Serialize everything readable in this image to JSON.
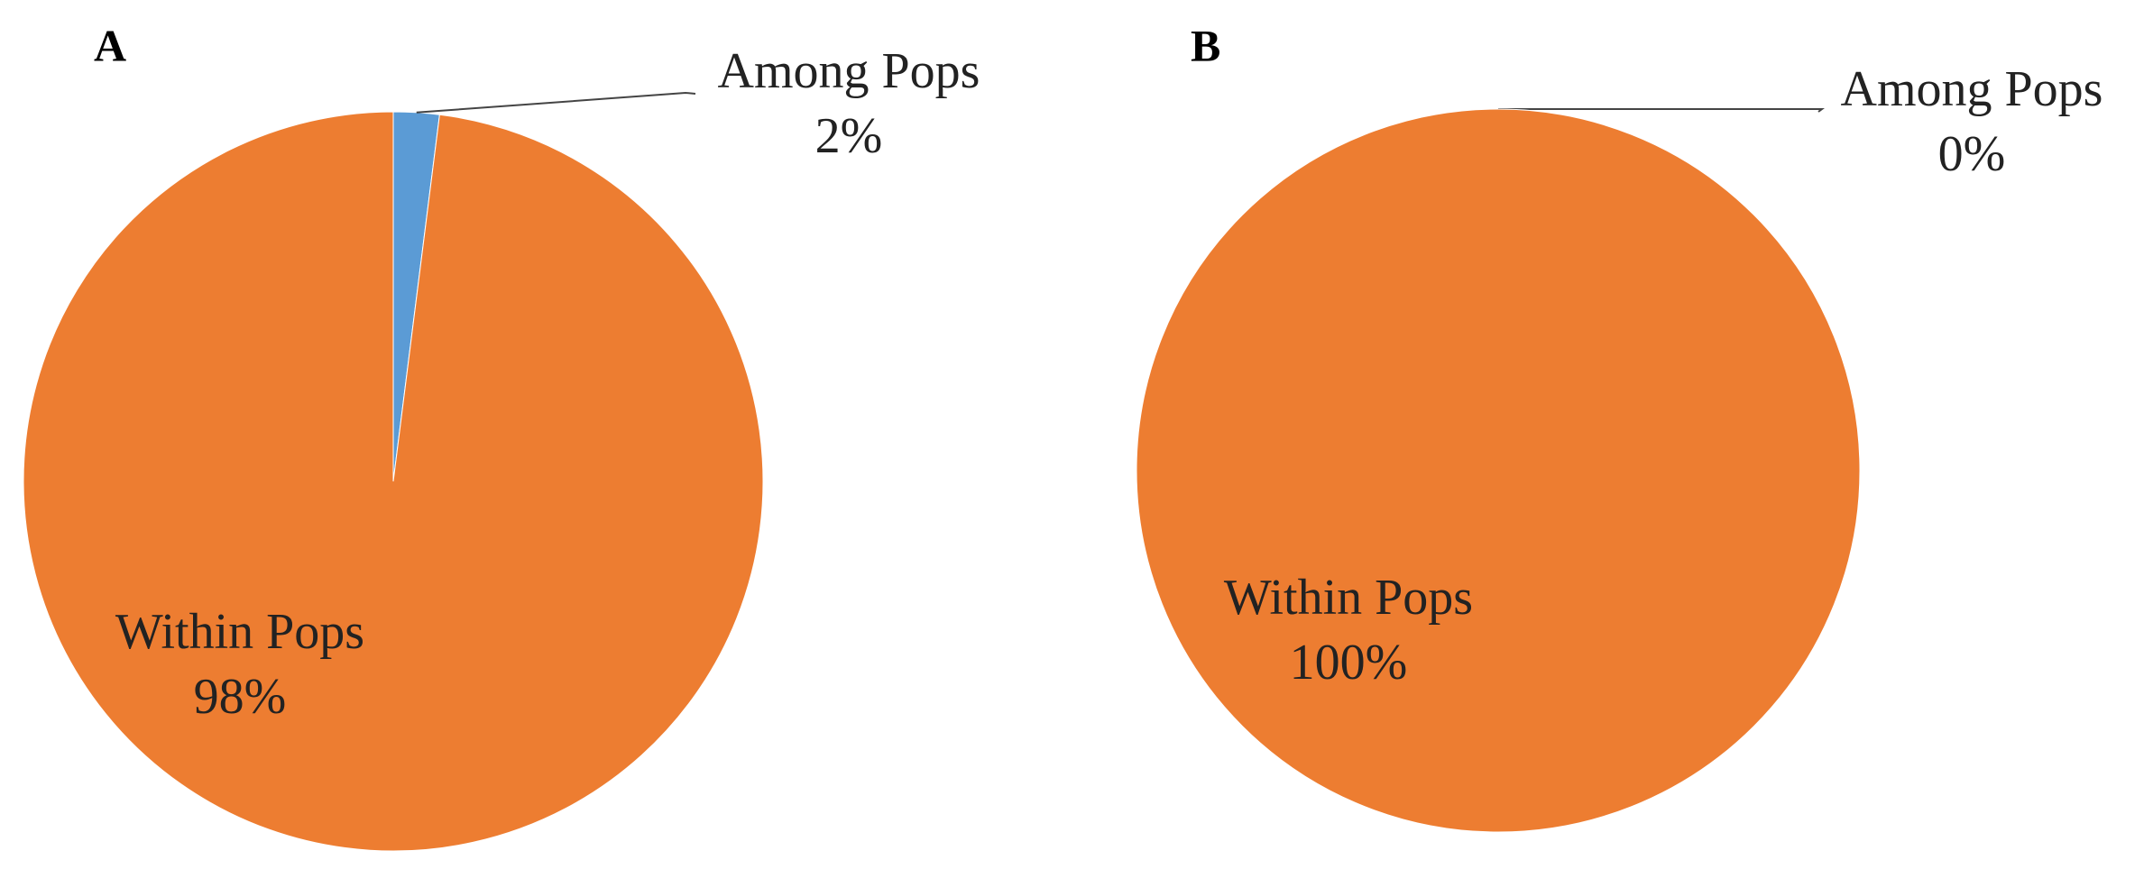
{
  "chart_data": [
    {
      "type": "pie",
      "title": "A",
      "categories": [
        "Among Pops",
        "Within Pops"
      ],
      "values": [
        2,
        98
      ],
      "value_labels": [
        "2%",
        "98%"
      ],
      "colors": [
        "#5b9bd5",
        "#ed7d31"
      ]
    },
    {
      "type": "pie",
      "title": "B",
      "categories": [
        "Among Pops",
        "Within Pops"
      ],
      "values": [
        0,
        100
      ],
      "value_labels": [
        "0%",
        "100%"
      ],
      "colors": [
        "#5b9bd5",
        "#ed7d31"
      ]
    }
  ]
}
